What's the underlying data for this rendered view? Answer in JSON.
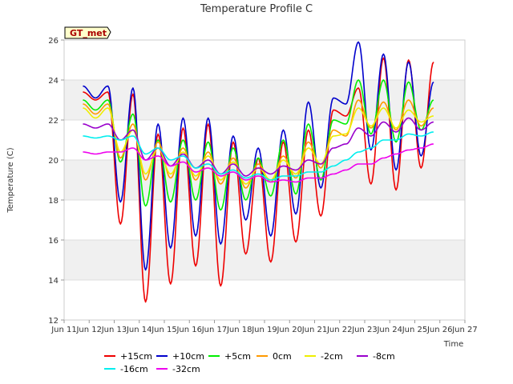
{
  "chart_data": {
    "type": "line",
    "title": "Temperature Profile C",
    "xlabel": "Time",
    "ylabel": "Temperature (C)",
    "ylim": [
      12,
      26
    ],
    "yticks": [
      "12",
      "14",
      "16",
      "18",
      "20",
      "22",
      "24",
      "26"
    ],
    "xlim": [
      "2023-06-11",
      "2023-06-27"
    ],
    "xticks": [
      "Jun 11",
      "Jun 12",
      "Jun 13",
      "Jun 14",
      "Jun 15",
      "Jun 16",
      "Jun 17",
      "Jun 18",
      "Jun 19",
      "Jun 20",
      "Jun 21",
      "Jun 22",
      "Jun 23",
      "Jun 24",
      "Jun 25",
      "Jun 26",
      "Jun 27"
    ],
    "grid": "horizontal alternating bands",
    "legend_position": "bottom",
    "badge": "GT_met",
    "series": [
      {
        "name": "+15cm",
        "color": "#ee0000",
        "min": [
          23.0,
          16.8,
          12.9,
          13.8,
          14.7,
          13.7,
          15.3,
          14.9,
          15.9,
          17.2,
          22.2,
          18.8,
          18.5,
          19.6
        ],
        "max": [
          23.4,
          23.3,
          21.3,
          21.6,
          21.8,
          20.9,
          20.1,
          20.9,
          21.5,
          22.5,
          23.6,
          25.1,
          25.0,
          24.9
        ]
      },
      {
        "name": "+10cm",
        "color": "#0000cc",
        "min": [
          23.1,
          17.9,
          14.5,
          15.6,
          16.2,
          15.8,
          17.0,
          16.2,
          17.3,
          18.6,
          22.8,
          20.5,
          19.5,
          20.2
        ],
        "max": [
          23.7,
          23.6,
          21.8,
          22.1,
          22.1,
          21.2,
          20.6,
          21.5,
          22.9,
          23.1,
          25.9,
          25.3,
          24.9,
          23.9
        ]
      },
      {
        "name": "+5cm",
        "color": "#00ee00",
        "min": [
          22.5,
          19.9,
          17.7,
          17.9,
          18.0,
          17.5,
          18.0,
          18.2,
          18.3,
          19.0,
          21.8,
          21.3,
          20.9,
          21.5
        ],
        "max": [
          23.0,
          22.3,
          21.0,
          21.0,
          20.9,
          20.6,
          20.1,
          21.0,
          21.8,
          22.0,
          24.0,
          24.0,
          23.9,
          23.0
        ]
      },
      {
        "name": "0cm",
        "color": "#ff9900",
        "min": [
          22.3,
          20.1,
          19.0,
          19.1,
          19.0,
          18.8,
          18.6,
          18.9,
          19.1,
          19.6,
          21.2,
          21.6,
          21.5,
          21.7
        ],
        "max": [
          22.8,
          21.8,
          20.9,
          20.6,
          20.4,
          20.1,
          19.8,
          20.2,
          20.9,
          21.5,
          23.0,
          22.9,
          23.0,
          22.6
        ]
      },
      {
        "name": "-2cm",
        "color": "#eeee00",
        "min": [
          22.1,
          20.4,
          19.3,
          19.3,
          19.2,
          19.0,
          18.8,
          19.0,
          19.3,
          19.8,
          21.3,
          21.7,
          21.6,
          21.9
        ],
        "max": [
          22.6,
          21.5,
          20.6,
          20.4,
          20.2,
          19.9,
          19.6,
          20.0,
          20.6,
          21.2,
          22.6,
          22.6,
          22.5,
          22.2
        ]
      },
      {
        "name": "-8cm",
        "color": "#9900cc",
        "min": [
          21.6,
          21.0,
          20.0,
          19.7,
          19.6,
          19.3,
          19.2,
          19.3,
          19.5,
          19.8,
          20.8,
          21.2,
          21.4,
          21.5
        ],
        "max": [
          21.8,
          21.5,
          20.6,
          20.3,
          20.0,
          19.8,
          19.6,
          19.7,
          20.0,
          20.6,
          21.6,
          21.9,
          22.1,
          21.9
        ]
      },
      {
        "name": "-16cm",
        "color": "#00eeee",
        "min": [
          21.1,
          21.0,
          20.3,
          20.0,
          19.6,
          19.3,
          19.1,
          19.0,
          19.2,
          19.4,
          20.0,
          20.6,
          21.0,
          21.2
        ],
        "max": [
          21.2,
          21.2,
          20.6,
          20.2,
          19.8,
          19.5,
          19.3,
          19.2,
          19.4,
          19.7,
          20.4,
          21.0,
          21.3,
          21.4
        ]
      },
      {
        "name": "-32cm",
        "color": "#ee00ee",
        "min": [
          20.3,
          20.4,
          20.0,
          19.7,
          19.4,
          19.2,
          19.0,
          18.9,
          18.9,
          19.1,
          19.5,
          19.8,
          20.3,
          20.6
        ],
        "max": [
          20.4,
          20.6,
          20.2,
          19.9,
          19.6,
          19.4,
          19.2,
          19.0,
          19.1,
          19.3,
          19.8,
          20.1,
          20.5,
          20.8
        ]
      }
    ]
  }
}
